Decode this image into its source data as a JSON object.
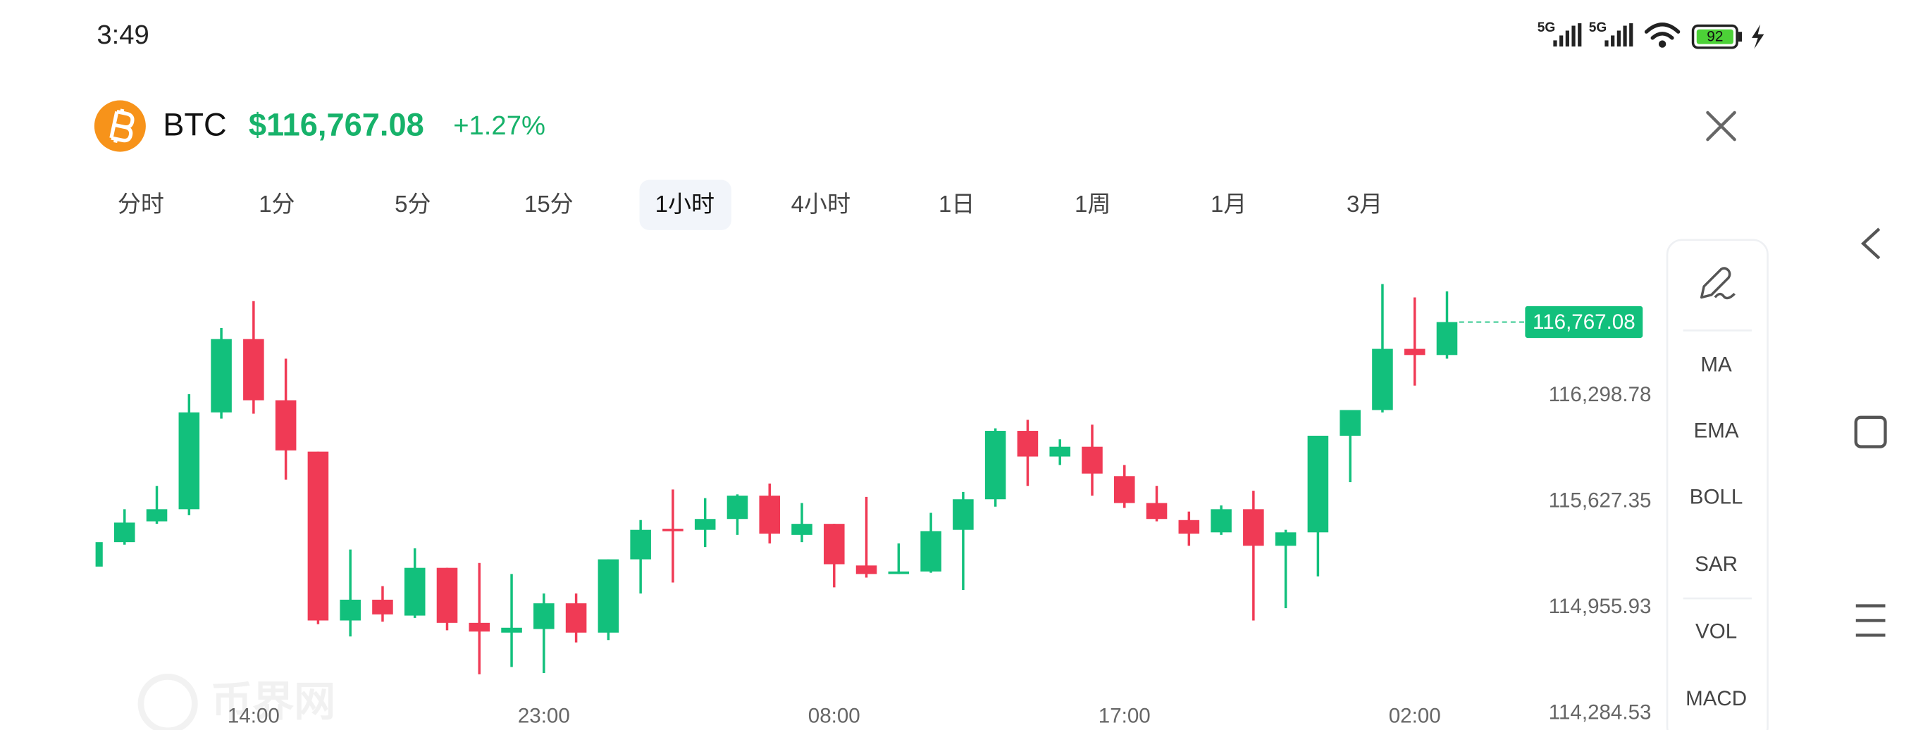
{
  "status_bar": {
    "time": "3:49",
    "network": [
      "5G",
      "5G"
    ],
    "battery": "92"
  },
  "header": {
    "symbol": "BTC",
    "price": "$116,767.08",
    "change": "+1.27%"
  },
  "tabs": {
    "items": [
      "分时",
      "1分",
      "5分",
      "15分",
      "1小时",
      "4小时",
      "1日",
      "1周",
      "1月",
      "3月"
    ],
    "active": 4
  },
  "tools": [
    "MA",
    "EMA",
    "BOLL",
    "SAR",
    "VOL",
    "MACD"
  ],
  "watermark": "币界网",
  "chart_data": {
    "type": "candlestick",
    "categories": [
      null,
      null,
      null,
      null,
      null,
      "14:00",
      null,
      null,
      null,
      null,
      null,
      null,
      null,
      null,
      "23:00",
      null,
      null,
      null,
      null,
      null,
      null,
      null,
      null,
      "08:00",
      null,
      null,
      null,
      null,
      null,
      null,
      null,
      null,
      "17:00",
      null,
      null,
      null,
      null,
      null,
      null,
      null,
      null,
      "02:00",
      null
    ],
    "open": [
      115216,
      115371,
      115503,
      115580,
      116194,
      116659,
      116271,
      115945,
      114874,
      115006,
      114905,
      115208,
      114859,
      114797,
      114820,
      114983,
      114797,
      115262,
      115456,
      115449,
      115518,
      115666,
      115417,
      115487,
      115223,
      115169,
      115185,
      115449,
      115643,
      116077,
      115914,
      115976,
      115790,
      115619,
      115511,
      115433,
      115580,
      115348,
      115433,
      116046,
      116209,
      116597,
      116558
    ],
    "high": [
      115371,
      115580,
      115728,
      116310,
      116729,
      116900,
      116535,
      115945,
      115324,
      115092,
      115332,
      115208,
      115239,
      115169,
      115045,
      115045,
      115262,
      115511,
      115705,
      115650,
      115674,
      115743,
      115619,
      115487,
      115658,
      115363,
      115557,
      115689,
      116093,
      116147,
      116023,
      116116,
      115860,
      115728,
      115565,
      115604,
      115697,
      115449,
      116046,
      116209,
      117008,
      116923,
      116962
    ],
    "low": [
      115216,
      115355,
      115487,
      115542,
      116155,
      116186,
      115767,
      114851,
      114773,
      114867,
      114890,
      114812,
      114533,
      114579,
      114541,
      114735,
      114750,
      115045,
      115115,
      115340,
      115417,
      115363,
      115371,
      115084,
      115146,
      115169,
      115177,
      115068,
      115596,
      115728,
      115860,
      115666,
      115588,
      115503,
      115348,
      115417,
      114874,
      114952,
      115154,
      115751,
      116194,
      116364,
      116535
    ],
    "close": [
      115371,
      115495,
      115580,
      116194,
      116659,
      116271,
      115953,
      114874,
      115006,
      114913,
      115208,
      114859,
      114804,
      114828,
      114983,
      114797,
      115262,
      115449,
      115441,
      115518,
      115666,
      115425,
      115487,
      115231,
      115169,
      115185,
      115441,
      115643,
      116077,
      115914,
      115976,
      115806,
      115619,
      115518,
      115425,
      115580,
      115348,
      115433,
      116046,
      116209,
      116597,
      116558,
      116767.08
    ],
    "up_color": "#12c07c",
    "down_color": "#f03a55",
    "ylim": [
      114230,
      117220
    ],
    "yticks": [
      {
        "value": 114284.53,
        "label": "114,284.53"
      },
      {
        "value": 114955.93,
        "label": "114,955.93"
      },
      {
        "value": 115627.35,
        "label": "115,627.35"
      },
      {
        "value": 116298.78,
        "label": "116,298.78"
      }
    ],
    "last_price": {
      "value": 116767.08,
      "label": "116,767.08"
    }
  }
}
